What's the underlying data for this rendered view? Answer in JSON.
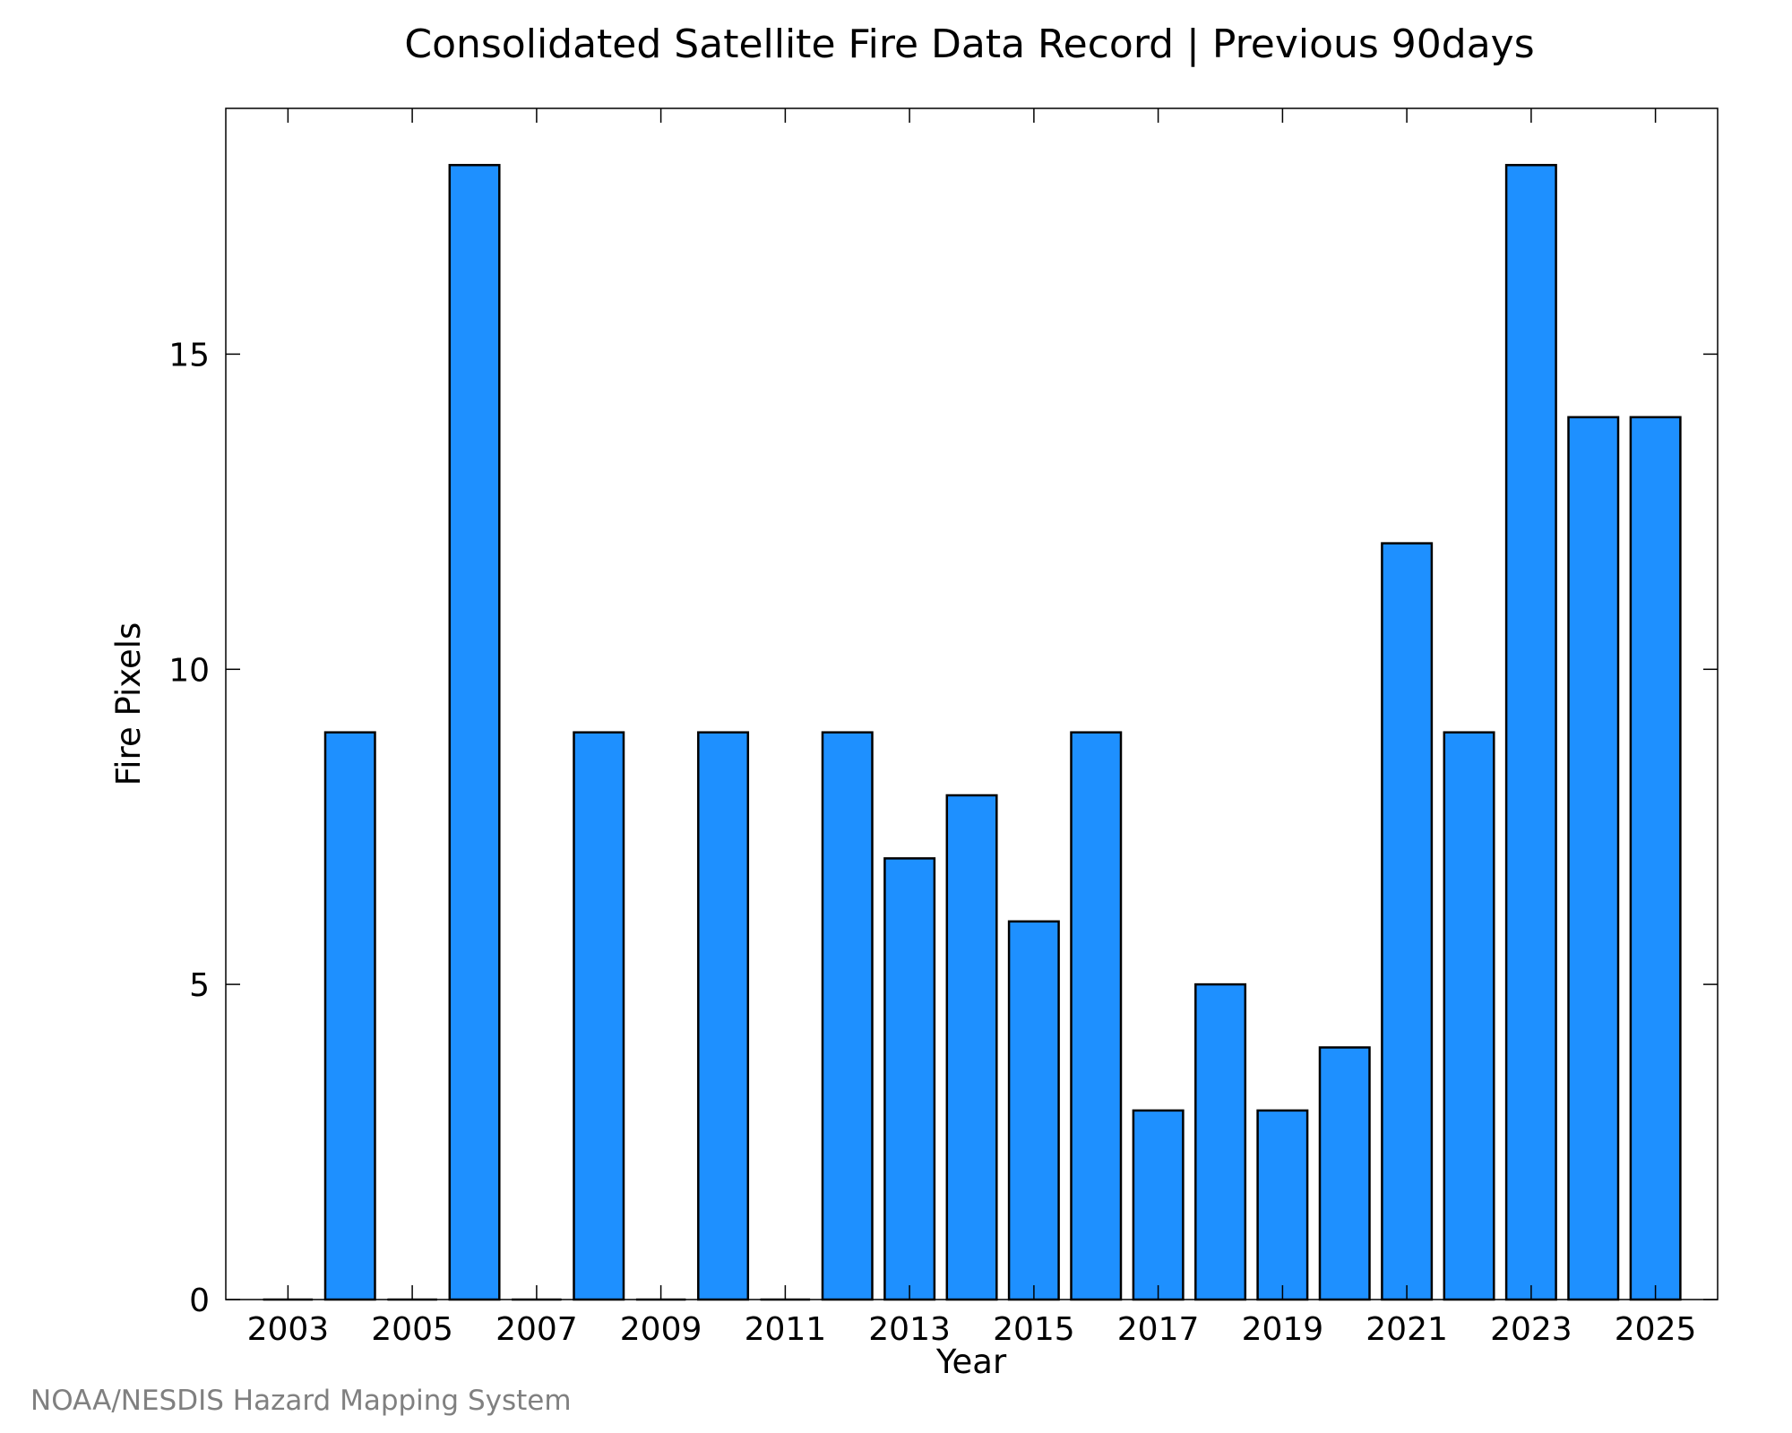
{
  "chart_data": {
    "type": "bar",
    "title": "Consolidated Satellite Fire Data Record | Previous 90days",
    "xlabel": "Year",
    "ylabel": "Fire Pixels",
    "categories": [
      2003,
      2004,
      2005,
      2006,
      2007,
      2008,
      2009,
      2010,
      2011,
      2012,
      2013,
      2014,
      2015,
      2016,
      2017,
      2018,
      2019,
      2020,
      2021,
      2022,
      2023,
      2024,
      2025
    ],
    "values": [
      0,
      9,
      0,
      18,
      0,
      9,
      0,
      9,
      0,
      9,
      7,
      8,
      6,
      9,
      3,
      5,
      3,
      4,
      12,
      9,
      18,
      14,
      14
    ],
    "xlim": [
      2002,
      2026
    ],
    "ylim": [
      0,
      18.9
    ],
    "xticks": [
      2003,
      2005,
      2007,
      2009,
      2011,
      2013,
      2015,
      2017,
      2019,
      2021,
      2023,
      2025
    ],
    "yticks": [
      0,
      5,
      10,
      15
    ],
    "bar_color": "#1e90ff",
    "edge_color": "#000000",
    "grid": false,
    "legend": "none"
  },
  "credit": "NOAA/NESDIS Hazard Mapping System"
}
